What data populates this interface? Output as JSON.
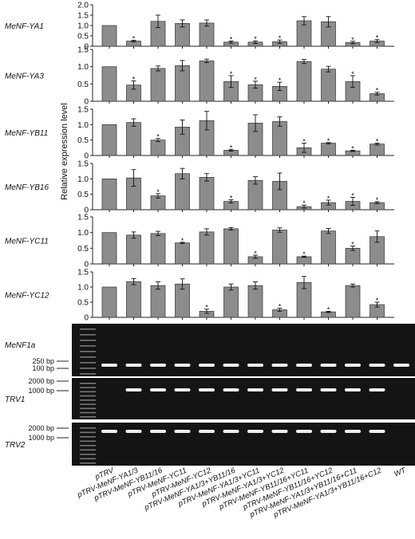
{
  "ylabel": "Relative expression level",
  "lanes": [
    "pTRV",
    "pTRV-MeNF-YA1/3",
    "pTRV-MeNF-YB11/16",
    "pTRV-MeNF-YC11",
    "pTRV-MeNF-YC12",
    "pTRV-MeNF-YA1/3+YB11/16",
    "pTRV-MeNF-YA1/3+YC11",
    "pTRV-MeNF-YA1/3+YC12",
    "pTRV-MeNF-YB11/16+YC11",
    "pTRV-MeNF-YB11/16+YC12",
    "pTRV-MeNF-YA1/3+YB11/16+C11",
    "pTRV-MeNF-YA1/3+YB11/16+C12",
    "WT"
  ],
  "chart_data": [
    {
      "type": "bar",
      "gene": "MeNF-YA1",
      "ylim": [
        0,
        2
      ],
      "ticks": [
        "0",
        "0.5",
        "1.0",
        "1.5",
        "2.0"
      ],
      "values": [
        1.0,
        0.25,
        1.2,
        1.1,
        1.12,
        0.2,
        0.2,
        0.22,
        1.23,
        1.18,
        0.18,
        0.25
      ],
      "errors": [
        0,
        0.04,
        0.3,
        0.17,
        0.15,
        0.05,
        0.06,
        0.08,
        0.2,
        0.25,
        0.06,
        0.07
      ],
      "significant": [
        false,
        true,
        false,
        false,
        false,
        true,
        true,
        true,
        false,
        false,
        true,
        true
      ]
    },
    {
      "type": "bar",
      "gene": "MeNF-YA3",
      "ylim": [
        0,
        1.5
      ],
      "ticks": [
        "0",
        "0.5",
        "1.0",
        "1.5"
      ],
      "values": [
        1.0,
        0.47,
        0.95,
        1.03,
        1.17,
        0.57,
        0.48,
        0.43,
        1.15,
        0.93,
        0.57,
        0.22
      ],
      "errors": [
        0,
        0.12,
        0.07,
        0.15,
        0.05,
        0.17,
        0.1,
        0.12,
        0.06,
        0.08,
        0.17,
        0.04
      ],
      "significant": [
        false,
        true,
        false,
        false,
        false,
        true,
        true,
        true,
        false,
        false,
        true,
        true
      ]
    },
    {
      "type": "bar",
      "gene": "MeNF-YB11",
      "ylim": [
        0,
        1.5
      ],
      "ticks": [
        "0",
        "0.5",
        "1.0",
        "1.5"
      ],
      "values": [
        1.0,
        1.07,
        0.5,
        0.92,
        1.13,
        0.17,
        1.05,
        1.1,
        0.25,
        0.4,
        0.15,
        0.37
      ],
      "errors": [
        0,
        0.12,
        0.05,
        0.23,
        0.3,
        0.03,
        0.27,
        0.15,
        0.15,
        0.02,
        0.02,
        0.03
      ],
      "significant": [
        false,
        false,
        true,
        false,
        false,
        true,
        false,
        false,
        true,
        true,
        true,
        true
      ]
    },
    {
      "type": "bar",
      "gene": "MeNF-YB16",
      "ylim": [
        0,
        1.5
      ],
      "ticks": [
        "0",
        "0.5",
        "1.0",
        "1.5"
      ],
      "values": [
        1.0,
        1.03,
        0.45,
        1.17,
        1.05,
        0.27,
        0.95,
        0.92,
        0.1,
        0.23,
        0.27,
        0.23
      ],
      "errors": [
        0,
        0.27,
        0.07,
        0.17,
        0.12,
        0.05,
        0.12,
        0.27,
        0.05,
        0.08,
        0.13,
        0.03
      ],
      "significant": [
        false,
        false,
        true,
        false,
        false,
        true,
        false,
        false,
        true,
        true,
        true,
        true
      ]
    },
    {
      "type": "bar",
      "gene": "MeNF-YC11",
      "ylim": [
        0,
        1.5
      ],
      "ticks": [
        "0",
        "0.5",
        "1.0",
        "1.5"
      ],
      "values": [
        1.0,
        0.92,
        0.97,
        0.67,
        1.02,
        1.12,
        0.23,
        1.08,
        0.23,
        1.05,
        0.5,
        0.87
      ],
      "errors": [
        0,
        0.1,
        0.07,
        0.02,
        0.1,
        0.04,
        0.05,
        0.07,
        0.02,
        0.08,
        0.07,
        0.18
      ],
      "significant": [
        false,
        false,
        false,
        true,
        false,
        false,
        true,
        false,
        true,
        false,
        true,
        false
      ]
    },
    {
      "type": "bar",
      "gene": "MeNF-YC12",
      "ylim": [
        0,
        1.5
      ],
      "ticks": [
        "0",
        "0.5",
        "1.0",
        "1.5"
      ],
      "values": [
        1.0,
        1.18,
        1.05,
        1.1,
        0.2,
        1.0,
        1.05,
        0.25,
        1.15,
        0.18,
        1.05,
        0.42
      ],
      "errors": [
        0,
        0.1,
        0.12,
        0.17,
        0.07,
        0.1,
        0.12,
        0.05,
        0.2,
        0.02,
        0.05,
        0.08
      ],
      "significant": [
        false,
        false,
        false,
        false,
        true,
        false,
        false,
        true,
        false,
        true,
        false,
        true
      ]
    }
  ],
  "gels": [
    {
      "name": "MeNF1a",
      "markers": [
        "250 bp",
        "100 bp"
      ],
      "bands": [
        1,
        1,
        1,
        1,
        1,
        1,
        1,
        1,
        1,
        1,
        1,
        1,
        1
      ]
    },
    {
      "name": "TRV1",
      "markers": [
        "2000 bp",
        "1000 bp"
      ],
      "bands": [
        0,
        1,
        1,
        1,
        1,
        1,
        1,
        1,
        1,
        1,
        1,
        1,
        0
      ]
    },
    {
      "name": "TRV2",
      "markers": [
        "2000 bp",
        "1000 bp"
      ],
      "bands": [
        1,
        1,
        1,
        1,
        1,
        1,
        1,
        1,
        1,
        1,
        1,
        1,
        0
      ]
    }
  ],
  "colors": {
    "bar": "#8c8c8c",
    "gel": "#141414",
    "band": "#f0f0f0"
  }
}
